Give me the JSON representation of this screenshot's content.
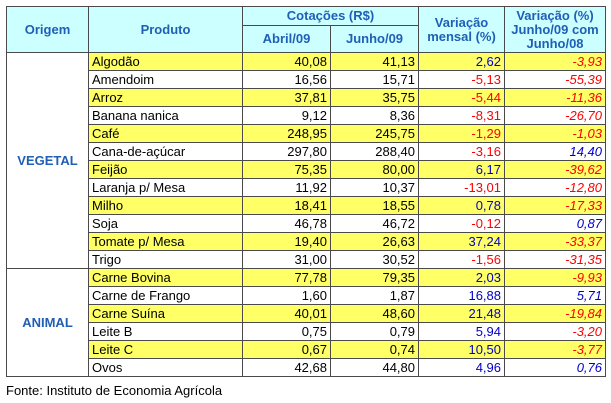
{
  "header": {
    "origem": "Origem",
    "produto": "Produto",
    "cotacoes": "Cotações (R$)",
    "abril": "Abril/09",
    "junho": "Junho/09",
    "variacao_mensal": "Variação mensal (%)",
    "variacao_anual": "Variação (%) Junho/09 com Junho/08"
  },
  "groups": [
    {
      "name": "VEGETAL",
      "rows": [
        {
          "produto": "Algodão",
          "abril": "40,08",
          "junho": "41,13",
          "mensal": "2,62",
          "anual": "-3,93",
          "hl": true
        },
        {
          "produto": "Amendoim",
          "abril": "16,56",
          "junho": "15,71",
          "mensal": "-5,13",
          "anual": "-55,39",
          "hl": false
        },
        {
          "produto": "Arroz",
          "abril": "37,81",
          "junho": "35,75",
          "mensal": "-5,44",
          "anual": "-11,36",
          "hl": true
        },
        {
          "produto": "Banana nanica",
          "abril": "9,12",
          "junho": "8,36",
          "mensal": "-8,31",
          "anual": "-26,70",
          "hl": false
        },
        {
          "produto": "Café",
          "abril": "248,95",
          "junho": "245,75",
          "mensal": "-1,29",
          "anual": "-1,03",
          "hl": true
        },
        {
          "produto": "Cana-de-açúcar",
          "abril": "297,80",
          "junho": "288,40",
          "mensal": "-3,16",
          "anual": "14,40",
          "hl": false
        },
        {
          "produto": "Feijão",
          "abril": "75,35",
          "junho": "80,00",
          "mensal": "6,17",
          "anual": "-39,62",
          "hl": true
        },
        {
          "produto": "Laranja p/ Mesa",
          "abril": "11,92",
          "junho": "10,37",
          "mensal": "-13,01",
          "anual": "-12,80",
          "hl": false
        },
        {
          "produto": "Milho",
          "abril": "18,41",
          "junho": "18,55",
          "mensal": "0,78",
          "anual": "-17,33",
          "hl": true
        },
        {
          "produto": "Soja",
          "abril": "46,78",
          "junho": "46,72",
          "mensal": "-0,12",
          "anual": "0,87",
          "hl": false
        },
        {
          "produto": "Tomate p/ Mesa",
          "abril": "19,40",
          "junho": "26,63",
          "mensal": "37,24",
          "anual": "-33,37",
          "hl": true
        },
        {
          "produto": "Trigo",
          "abril": "31,00",
          "junho": "30,52",
          "mensal": "-1,56",
          "anual": "-31,35",
          "hl": false
        }
      ]
    },
    {
      "name": "ANIMAL",
      "rows": [
        {
          "produto": "Carne Bovina",
          "abril": "77,78",
          "junho": "79,35",
          "mensal": "2,03",
          "anual": "-9,93",
          "hl": true
        },
        {
          "produto": "Carne de Frango",
          "abril": "1,60",
          "junho": "1,87",
          "mensal": "16,88",
          "anual": "5,71",
          "hl": false
        },
        {
          "produto": "Carne Suína",
          "abril": "40,01",
          "junho": "48,60",
          "mensal": "21,48",
          "anual": "-19,84",
          "hl": true
        },
        {
          "produto": "Leite B",
          "abril": "0,75",
          "junho": "0,79",
          "mensal": "5,94",
          "anual": "-3,20",
          "hl": false
        },
        {
          "produto": "Leite C",
          "abril": "0,67",
          "junho": "0,74",
          "mensal": "10,50",
          "anual": "-3,77",
          "hl": true
        },
        {
          "produto": "Ovos",
          "abril": "42,68",
          "junho": "44,80",
          "mensal": "4,96",
          "anual": "0,76",
          "hl": false
        }
      ]
    }
  ],
  "fonte": "Fonte: Instituto de Economia Agrícola",
  "colors": {
    "header_bg": "#ccffff",
    "header_text": "#1f5fb5",
    "highlight": "#ffff66",
    "positive": "#0000cc",
    "negative": "#ff0000"
  }
}
